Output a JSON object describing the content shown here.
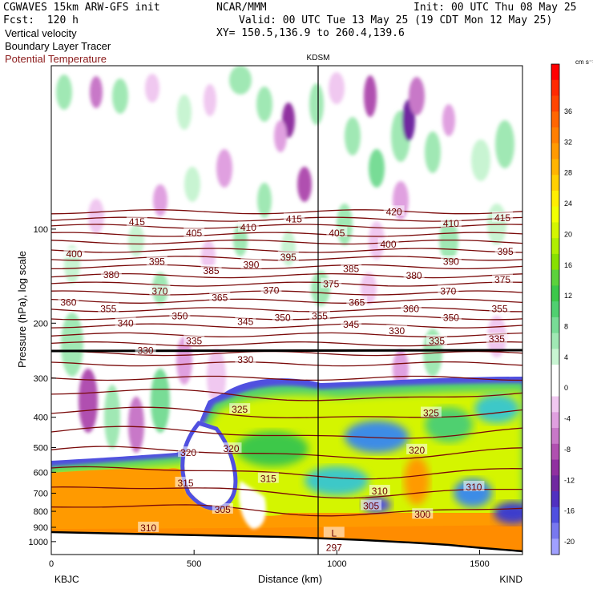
{
  "header": {
    "title_line1": "CGWAVES 15km ARW-GFS init",
    "title_line2": "Fcst:  120 h",
    "center_top": "NCAR/MMM",
    "init": "Init: 00 UTC Thu 08 May 25",
    "valid": "Valid: 00 UTC Tue 13 May 25 (19 CDT Mon 12 May 25)",
    "xy": "XY= 150.5,136.9 to 260.4,139.6",
    "field1": "Vertical velocity",
    "field2": "Boundary Layer Tracer",
    "field3": "Potential Temperature",
    "field3_color": "#8b1a1a"
  },
  "chart_data": {
    "type": "heatmap",
    "xlabel": "Distance (km)",
    "ylabel": "Pressure (hPa), log scale",
    "xlim": [
      0,
      1650
    ],
    "ylim": [
      1100,
      30
    ],
    "x_ticks": [
      "0",
      "500",
      "1000",
      "1500"
    ],
    "y_ticks": [
      "100",
      "200",
      "300",
      "400",
      "500",
      "600",
      "700",
      "800",
      "900",
      "1000"
    ],
    "x_tick_values": [
      0,
      500,
      1000,
      1500
    ],
    "y_tick_values": [
      100,
      200,
      300,
      400,
      500,
      600,
      700,
      800,
      900,
      1000
    ],
    "endpoint_left": "KBJC",
    "endpoint_right": "KIND",
    "marker_label": "KDSM",
    "marker_x": 930,
    "colorbar": {
      "unit": "cm s⁻¹",
      "labels": [
        "36",
        "32",
        "28",
        "24",
        "20",
        "16",
        "12",
        "8",
        "4",
        "0",
        "-4",
        "-8",
        "-12",
        "-16",
        "-20"
      ],
      "colors": [
        "#ff0000",
        "#ff2a00",
        "#ff4500",
        "#ff6600",
        "#ff7f00",
        "#ff9a00",
        "#ffb400",
        "#ffd000",
        "#ffee00",
        "#f2ff00",
        "#d4f500",
        "#b0ee00",
        "#88e000",
        "#5cd23c",
        "#3cc84a",
        "#50d070",
        "#78dc96",
        "#a0e8b4",
        "#c8f4d2",
        "#ffffff",
        "#ffffff",
        "#f0c8f0",
        "#e0a0e0",
        "#c878c8",
        "#b050b0",
        "#9030a0",
        "#7028a0",
        "#5030c0",
        "#5050e0",
        "#7878f0",
        "#a0a0ff"
      ]
    },
    "theta_labels": [
      {
        "v": "415",
        "x": 300,
        "p": 95
      },
      {
        "v": "405",
        "x": 500,
        "p": 103
      },
      {
        "v": "410",
        "x": 690,
        "p": 99
      },
      {
        "v": "415",
        "x": 850,
        "p": 93
      },
      {
        "v": "405",
        "x": 1000,
        "p": 103
      },
      {
        "v": "420",
        "x": 1200,
        "p": 88
      },
      {
        "v": "410",
        "x": 1400,
        "p": 96
      },
      {
        "v": "415",
        "x": 1580,
        "p": 92
      },
      {
        "v": "400",
        "x": 80,
        "p": 120
      },
      {
        "v": "395",
        "x": 370,
        "p": 127
      },
      {
        "v": "390",
        "x": 700,
        "p": 130
      },
      {
        "v": "395",
        "x": 830,
        "p": 123
      },
      {
        "v": "400",
        "x": 1180,
        "p": 112
      },
      {
        "v": "390",
        "x": 1400,
        "p": 127
      },
      {
        "v": "395",
        "x": 1590,
        "p": 118
      },
      {
        "v": "380",
        "x": 210,
        "p": 140
      },
      {
        "v": "385",
        "x": 560,
        "p": 136
      },
      {
        "v": "385",
        "x": 1050,
        "p": 134
      },
      {
        "v": "380",
        "x": 1270,
        "p": 141
      },
      {
        "v": "375",
        "x": 1580,
        "p": 145
      },
      {
        "v": "370",
        "x": 380,
        "p": 158
      },
      {
        "v": "365",
        "x": 590,
        "p": 166
      },
      {
        "v": "370",
        "x": 770,
        "p": 157
      },
      {
        "v": "375",
        "x": 980,
        "p": 150
      },
      {
        "v": "370",
        "x": 1390,
        "p": 158
      },
      {
        "v": "360",
        "x": 60,
        "p": 172
      },
      {
        "v": "355",
        "x": 200,
        "p": 180
      },
      {
        "v": "365",
        "x": 1070,
        "p": 172
      },
      {
        "v": "360",
        "x": 1260,
        "p": 180
      },
      {
        "v": "355",
        "x": 1570,
        "p": 180
      },
      {
        "v": "350",
        "x": 450,
        "p": 190
      },
      {
        "v": "350",
        "x": 810,
        "p": 192
      },
      {
        "v": "355",
        "x": 940,
        "p": 190
      },
      {
        "v": "350",
        "x": 1400,
        "p": 192
      },
      {
        "v": "340",
        "x": 260,
        "p": 200
      },
      {
        "v": "345",
        "x": 680,
        "p": 198
      },
      {
        "v": "345",
        "x": 1050,
        "p": 202
      },
      {
        "v": "335",
        "x": 500,
        "p": 228
      },
      {
        "v": "330",
        "x": 1210,
        "p": 212
      },
      {
        "v": "335",
        "x": 1350,
        "p": 228
      },
      {
        "v": "335",
        "x": 1560,
        "p": 225
      },
      {
        "v": "330",
        "x": 330,
        "p": 245
      },
      {
        "v": "330",
        "x": 680,
        "p": 262
      },
      {
        "v": "325",
        "x": 660,
        "p": 378
      },
      {
        "v": "325",
        "x": 1330,
        "p": 388
      },
      {
        "v": "320",
        "x": 480,
        "p": 520
      },
      {
        "v": "320",
        "x": 630,
        "p": 505
      },
      {
        "v": "320",
        "x": 1280,
        "p": 510
      },
      {
        "v": "315",
        "x": 470,
        "p": 650
      },
      {
        "v": "315",
        "x": 760,
        "p": 630
      },
      {
        "v": "310",
        "x": 1150,
        "p": 690
      },
      {
        "v": "310",
        "x": 1480,
        "p": 670
      },
      {
        "v": "305",
        "x": 600,
        "p": 790
      },
      {
        "v": "305",
        "x": 1120,
        "p": 770
      },
      {
        "v": "300",
        "x": 1300,
        "p": 820
      },
      {
        "v": "310",
        "x": 340,
        "p": 905
      },
      {
        "v": "297",
        "x": 990,
        "p": 1045
      },
      {
        "v": "L",
        "x": 990,
        "p": 940
      }
    ]
  }
}
